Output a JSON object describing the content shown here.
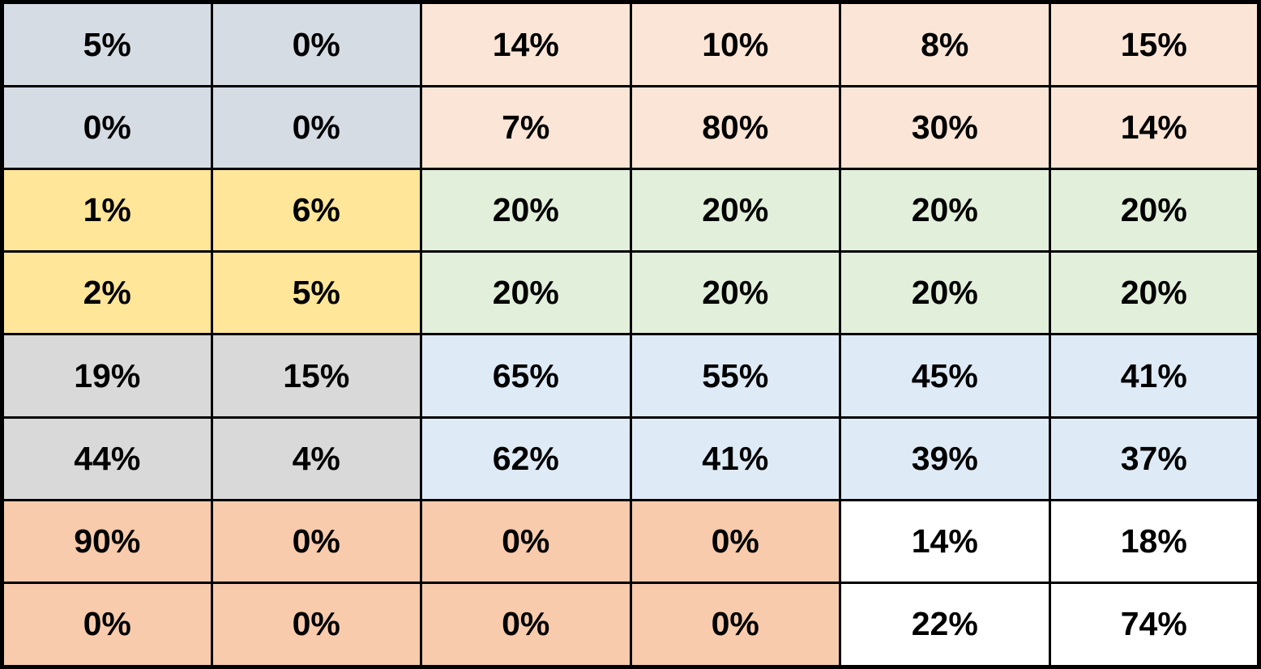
{
  "chart_data": {
    "type": "table",
    "title": "",
    "columns": 6,
    "rows": 8,
    "cell_values": [
      [
        "5%",
        "0%",
        "14%",
        "10%",
        "8%",
        "15%"
      ],
      [
        "0%",
        "0%",
        "7%",
        "80%",
        "30%",
        "14%"
      ],
      [
        "1%",
        "6%",
        "20%",
        "20%",
        "20%",
        "20%"
      ],
      [
        "2%",
        "5%",
        "20%",
        "20%",
        "20%",
        "20%"
      ],
      [
        "19%",
        "15%",
        "65%",
        "55%",
        "45%",
        "41%"
      ],
      [
        "44%",
        "4%",
        "62%",
        "41%",
        "39%",
        "37%"
      ],
      [
        "90%",
        "0%",
        "0%",
        "0%",
        "14%",
        "18%"
      ],
      [
        "0%",
        "0%",
        "0%",
        "0%",
        "22%",
        "74%"
      ]
    ],
    "cell_colors": [
      [
        "blue_gray",
        "blue_gray",
        "peach",
        "peach",
        "peach",
        "peach"
      ],
      [
        "blue_gray",
        "blue_gray",
        "peach",
        "peach",
        "peach",
        "peach"
      ],
      [
        "yellow",
        "yellow",
        "green",
        "green",
        "green",
        "green"
      ],
      [
        "yellow",
        "yellow",
        "green",
        "green",
        "green",
        "green"
      ],
      [
        "gray",
        "gray",
        "light_blue",
        "light_blue",
        "light_blue",
        "light_blue"
      ],
      [
        "gray",
        "gray",
        "light_blue",
        "light_blue",
        "light_blue",
        "light_blue"
      ],
      [
        "orange",
        "orange",
        "orange",
        "orange",
        "white",
        "white"
      ],
      [
        "orange",
        "orange",
        "orange",
        "orange",
        "white",
        "white"
      ]
    ],
    "color_palette": {
      "blue_gray": "#D6DCE4",
      "peach": "#FBE5D6",
      "yellow": "#FFE699",
      "green": "#E2EFDA",
      "gray": "#D9D9D9",
      "light_blue": "#DEEBF7",
      "orange": "#F8CBAD",
      "white": "#FFFFFF"
    },
    "border_color": "#000000",
    "text_color": "#000000",
    "legend_position": "none",
    "grid": true
  }
}
